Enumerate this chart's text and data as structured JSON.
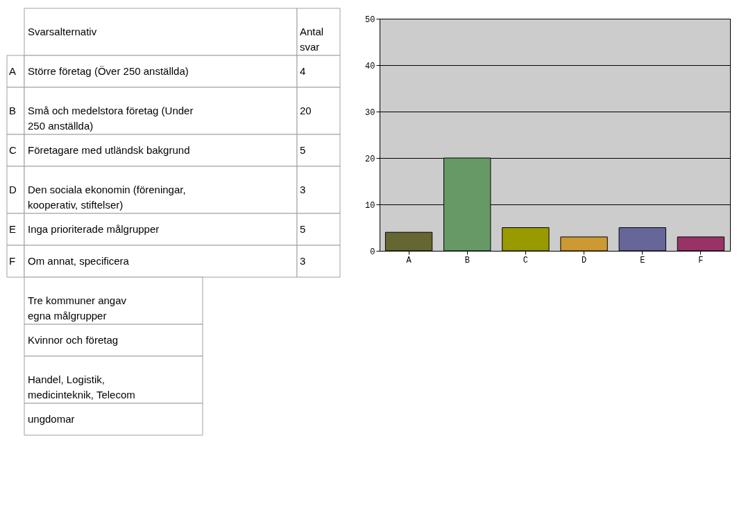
{
  "chart_data": {
    "type": "bar",
    "categories": [
      "A",
      "B",
      "C",
      "D",
      "E",
      "F"
    ],
    "values": [
      4,
      20,
      5,
      3,
      5,
      3
    ],
    "colors": [
      "#666633",
      "#669966",
      "#999900",
      "#cc9933",
      "#666699",
      "#993366"
    ],
    "ylim": [
      0,
      50
    ],
    "yticks": [
      0,
      10,
      20,
      30,
      40,
      50
    ],
    "grid": "y",
    "annotations": [
      "Svarsalternativ",
      "Antal svar",
      "Större företag (Över 250 anställda)",
      "Små och medelstora företag (Under 250 anställda)",
      "Företagare med utländsk bakgrund",
      "Den sociala ekonomin (föreningar, kooperativ, stiftelser)",
      "Inga prioriterade målgrupper",
      "Om annat, specificera",
      "4",
      "20",
      "5",
      "3",
      "5",
      "3",
      "Tre kommuner angav egna målgrupper",
      "Kvinnor och företag",
      "Handel, Logistik, medicinteknik, Telecom",
      "ungdomar"
    ]
  }
}
